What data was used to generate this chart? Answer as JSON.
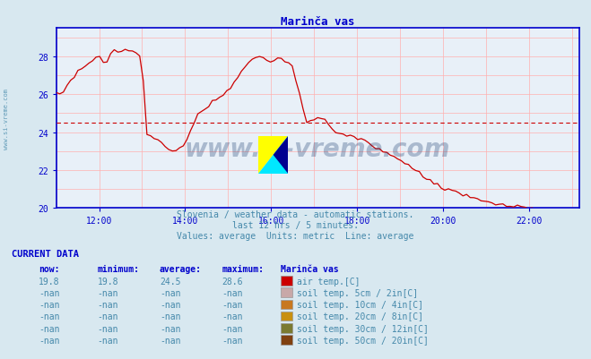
{
  "title": "Marinča vas",
  "bg_color": "#d8e8f0",
  "plot_bg_color": "#e8f0f8",
  "line_color": "#cc0000",
  "avg_line_color": "#cc0000",
  "avg_line_value": 24.5,
  "grid_color": "#ffb0b0",
  "axis_color": "#0000cc",
  "text_color": "#4488aa",
  "title_color": "#0000cc",
  "ymin": 20,
  "ymax": 29,
  "yticks": [
    20,
    22,
    24,
    26,
    28
  ],
  "xtick_labels": [
    "12:00",
    "14:00",
    "16:00",
    "18:00",
    "20:00",
    "22:00"
  ],
  "subtitle1": "Slovenia / weather data - automatic stations.",
  "subtitle2": "last 12 hrs / 5 minutes.",
  "subtitle3": "Values: average  Units: metric  Line: average",
  "watermark_text": "www.si-vreme.com",
  "watermark_color": "#1a3a6e",
  "watermark_alpha": 0.3,
  "ylabel_text": "www.si-vreme.com",
  "table_header": [
    "now:",
    "minimum:",
    "average:",
    "maximum:",
    "Marinča vas"
  ],
  "table_rows": [
    [
      "19.8",
      "19.8",
      "24.5",
      "28.6",
      "#cc0000",
      "air temp.[C]"
    ],
    [
      "-nan",
      "-nan",
      "-nan",
      "-nan",
      "#c8a8a8",
      "soil temp. 5cm / 2in[C]"
    ],
    [
      "-nan",
      "-nan",
      "-nan",
      "-nan",
      "#c87820",
      "soil temp. 10cm / 4in[C]"
    ],
    [
      "-nan",
      "-nan",
      "-nan",
      "-nan",
      "#c89010",
      "soil temp. 20cm / 8in[C]"
    ],
    [
      "-nan",
      "-nan",
      "-nan",
      "-nan",
      "#7a7a30",
      "soil temp. 30cm / 12in[C]"
    ],
    [
      "-nan",
      "-nan",
      "-nan",
      "-nan",
      "#804010",
      "soil temp. 50cm / 20in[C]"
    ]
  ],
  "current_data_label": "CURRENT DATA",
  "logo_colors": {
    "yellow": "#ffff00",
    "cyan": "#00e8ff",
    "dark_blue": "#000090"
  }
}
